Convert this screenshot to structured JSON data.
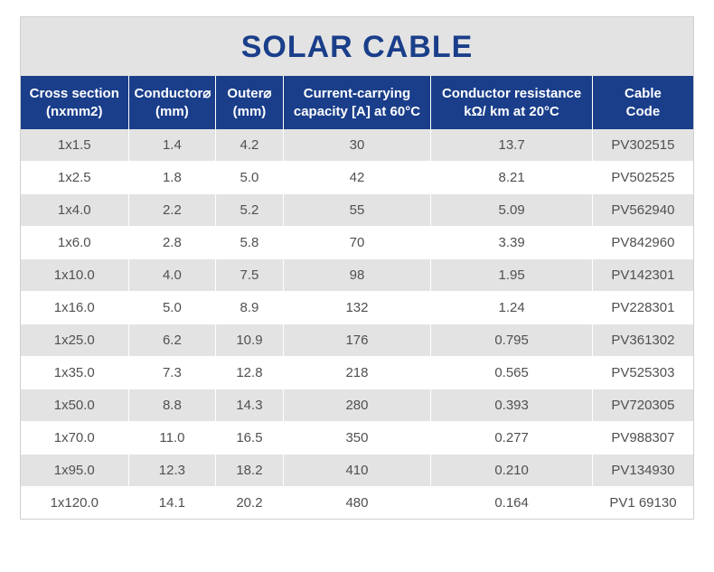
{
  "title": "SOLAR CABLE",
  "title_color": "#1a3e8a",
  "title_fontsize": 34,
  "title_fontweight": "700",
  "header_bg": "#1a3e8a",
  "header_text_color": "#ffffff",
  "row_alt_bg": "#e3e3e3",
  "row_bg": "#ffffff",
  "cell_text_color": "#505050",
  "border_color": "#ffffff",
  "container_bg": "#e3e3e3",
  "columns": [
    {
      "line1": "Cross section",
      "line2": "(nxmm2)",
      "width": "16%"
    },
    {
      "line1": "Conductor⌀",
      "line2": "(mm)",
      "width": "13%"
    },
    {
      "line1": "Outer⌀",
      "line2": "(mm)",
      "width": "10%"
    },
    {
      "line1": "Current-carrying",
      "line2": "capacity [A] at 60°C",
      "width": "22%"
    },
    {
      "line1": "Conductor resistance",
      "line2": "kΩ/ km at 20°C",
      "width": "24%"
    },
    {
      "line1": "Cable",
      "line2": "Code",
      "width": "15%"
    }
  ],
  "rows": [
    [
      "1x1.5",
      "1.4",
      "4.2",
      "30",
      "13.7",
      "PV302515"
    ],
    [
      "1x2.5",
      "1.8",
      "5.0",
      "42",
      "8.21",
      "PV502525"
    ],
    [
      "1x4.0",
      "2.2",
      "5.2",
      "55",
      "5.09",
      "PV562940"
    ],
    [
      "1x6.0",
      "2.8",
      "5.8",
      "70",
      "3.39",
      "PV842960"
    ],
    [
      "1x10.0",
      "4.0",
      "7.5",
      "98",
      "1.95",
      "PV142301"
    ],
    [
      "1x16.0",
      "5.0",
      "8.9",
      "132",
      "1.24",
      "PV228301"
    ],
    [
      "1x25.0",
      "6.2",
      "10.9",
      "176",
      "0.795",
      "PV361302"
    ],
    [
      "1x35.0",
      "7.3",
      "12.8",
      "218",
      "0.565",
      "PV525303"
    ],
    [
      "1x50.0",
      "8.8",
      "14.3",
      "280",
      "0.393",
      "PV720305"
    ],
    [
      "1x70.0",
      "11.0",
      "16.5",
      "350",
      "0.277",
      "PV988307"
    ],
    [
      "1x95.0",
      "12.3",
      "18.2",
      "410",
      "0.210",
      "PV134930"
    ],
    [
      "1x120.0",
      "14.1",
      "20.2",
      "480",
      "0.164",
      "PV1 69130"
    ]
  ]
}
